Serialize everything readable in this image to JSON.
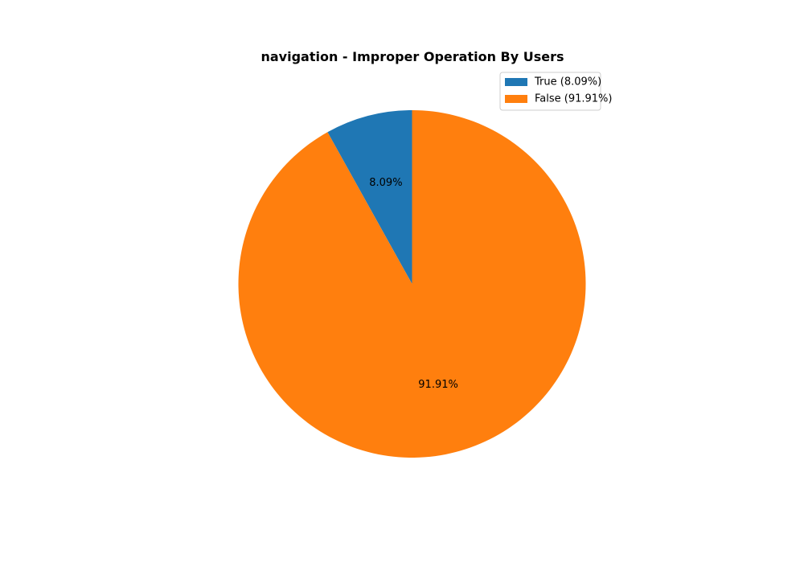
{
  "chart_data": {
    "type": "pie",
    "title": "navigation - Improper Operation By Users",
    "slices": [
      {
        "category": "True",
        "value": 8.09,
        "pct_label": "8.09%",
        "legend_label": "True (8.09%)",
        "color": "#1f77b4"
      },
      {
        "category": "False",
        "value": 91.91,
        "pct_label": "91.91%",
        "legend_label": "False (91.91%)",
        "color": "#ff7f0e"
      }
    ],
    "start_angle_deg": 90,
    "direction": "counterclockwise",
    "legend_position": "top-right"
  }
}
